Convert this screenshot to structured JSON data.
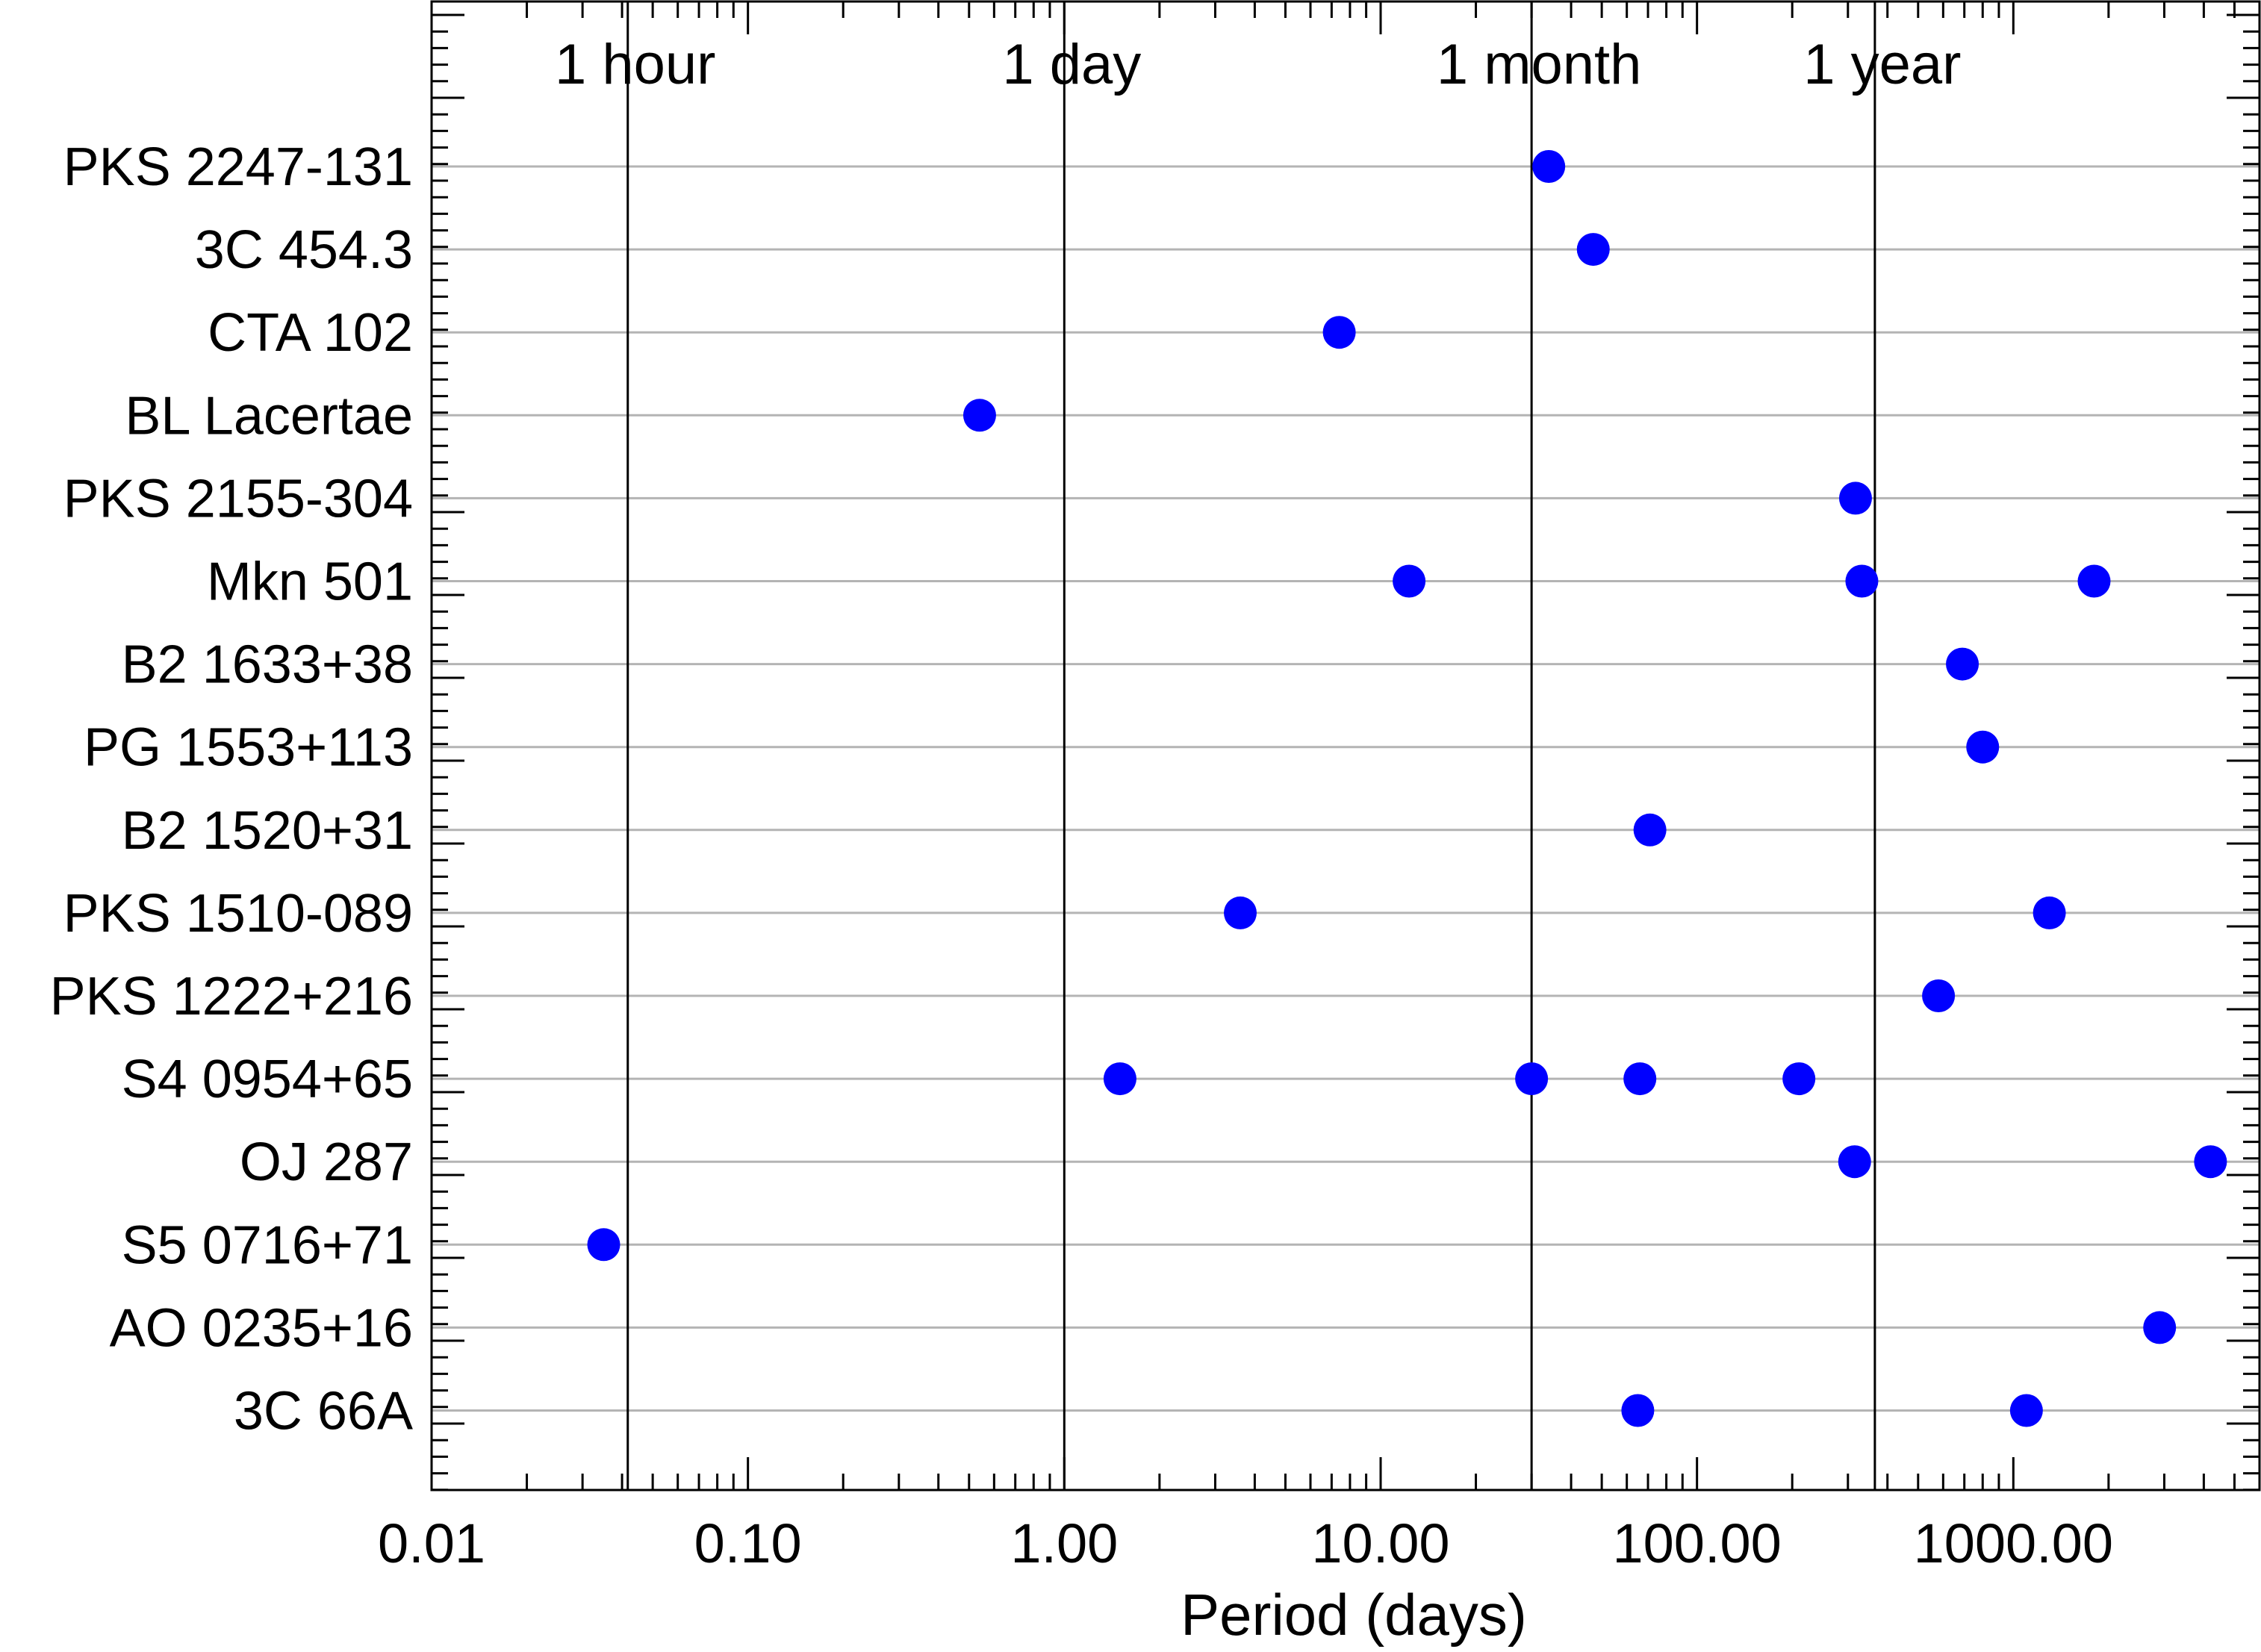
{
  "chart_data": {
    "type": "scatter",
    "xlabel": "Period (days)",
    "x_scale": "log",
    "xlim": [
      0.01,
      6000
    ],
    "x_ticks": [
      {
        "value": 0.01,
        "label": "0.01"
      },
      {
        "value": 0.1,
        "label": "0.10"
      },
      {
        "value": 1,
        "label": "1.00"
      },
      {
        "value": 10,
        "label": "10.00"
      },
      {
        "value": 100,
        "label": "100.00"
      },
      {
        "value": 1000,
        "label": "1000.00"
      }
    ],
    "reference_lines": [
      {
        "value": 0.0417,
        "label": "1 hour"
      },
      {
        "value": 1,
        "label": "1 day"
      },
      {
        "value": 30,
        "label": "1 month"
      },
      {
        "value": 365,
        "label": "1 year"
      }
    ],
    "grid": "horizontal",
    "marker_color": "#0000ff",
    "sources": [
      {
        "name": "PKS 2247-131",
        "periods": [
          34
        ]
      },
      {
        "name": "3C 454.3",
        "periods": [
          47
        ]
      },
      {
        "name": "CTA 102",
        "periods": [
          7.4
        ]
      },
      {
        "name": "BL Lacertae",
        "periods": [
          0.54
        ]
      },
      {
        "name": "PKS 2155-304",
        "periods": [
          317
        ]
      },
      {
        "name": "Mkn 501",
        "periods": [
          12.3,
          332,
          1800
        ]
      },
      {
        "name": "B2 1633+38",
        "periods": [
          690
        ]
      },
      {
        "name": "PG 1553+113",
        "periods": [
          800
        ]
      },
      {
        "name": "B2 1520+31",
        "periods": [
          71
        ]
      },
      {
        "name": "PKS 1510-089",
        "periods": [
          3.6,
          1300
        ]
      },
      {
        "name": "PKS 1222+216",
        "periods": [
          580
        ]
      },
      {
        "name": "S4 0954+65",
        "periods": [
          1.5,
          30,
          66,
          210
        ]
      },
      {
        "name": "OJ 287",
        "periods": [
          315,
          4200
        ]
      },
      {
        "name": "S5 0716+71",
        "periods": [
          0.035
        ]
      },
      {
        "name": "AO 0235+16",
        "periods": [
          2900
        ]
      },
      {
        "name": "3C 66A",
        "periods": [
          65,
          1100
        ]
      }
    ]
  }
}
